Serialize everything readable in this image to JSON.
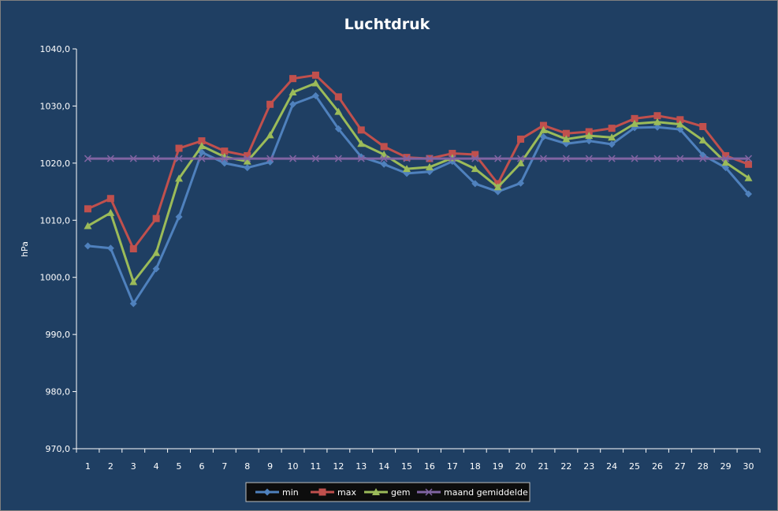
{
  "chart_data": {
    "type": "line",
    "title": "Luchtdruk",
    "ylabel": "hPa",
    "xlabel": "",
    "ylim": [
      970,
      1040
    ],
    "ytick_step": 10,
    "ytick_labels": [
      "970,0",
      "980,0",
      "990,0",
      "1000,0",
      "1010,0",
      "1020,0",
      "1030,0",
      "1040,0"
    ],
    "categories": [
      "1",
      "2",
      "3",
      "4",
      "5",
      "6",
      "7",
      "8",
      "9",
      "10",
      "11",
      "12",
      "13",
      "14",
      "15",
      "16",
      "17",
      "18",
      "19",
      "20",
      "21",
      "22",
      "23",
      "24",
      "25",
      "26",
      "27",
      "28",
      "29",
      "30"
    ],
    "grid": false,
    "legend_position": "bottom",
    "series": [
      {
        "name": "min",
        "color": "#4f81bd",
        "marker": "diamond",
        "values": [
          1005.5,
          1005.1,
          995.4,
          1001.5,
          1010.6,
          1021.9,
          1020.0,
          1019.2,
          1020.2,
          1030.3,
          1031.8,
          1026.0,
          1021.1,
          1019.8,
          1018.2,
          1018.5,
          1020.3,
          1016.4,
          1015.0,
          1016.5,
          1024.6,
          1023.4,
          1023.9,
          1023.3,
          1026.2,
          1026.3,
          1025.9,
          1021.4,
          1019.2,
          1014.6
        ]
      },
      {
        "name": "max",
        "color": "#c0504d",
        "marker": "square",
        "values": [
          1012.0,
          1013.8,
          1005.0,
          1010.3,
          1022.6,
          1023.9,
          1022.1,
          1021.3,
          1030.3,
          1034.8,
          1035.4,
          1031.6,
          1025.8,
          1022.9,
          1021.0,
          1020.8,
          1021.7,
          1021.5,
          1016.4,
          1024.2,
          1026.6,
          1025.2,
          1025.5,
          1026.1,
          1027.8,
          1028.3,
          1027.6,
          1026.4,
          1021.3,
          1019.8
        ]
      },
      {
        "name": "gem",
        "color": "#9bbb59",
        "marker": "triangle",
        "values": [
          1009.0,
          1011.3,
          999.2,
          1004.3,
          1017.3,
          1023.0,
          1021.1,
          1020.3,
          1024.9,
          1032.4,
          1034.0,
          1029.0,
          1023.4,
          1021.5,
          1019.0,
          1019.3,
          1020.9,
          1019.0,
          1015.8,
          1020.0,
          1025.8,
          1024.2,
          1024.8,
          1024.5,
          1026.9,
          1027.2,
          1026.8,
          1024.0,
          1020.1,
          1017.4
        ]
      },
      {
        "name": "maand gemiddelde",
        "color": "#8064a2",
        "marker": "x",
        "values": [
          1020.8,
          1020.8,
          1020.8,
          1020.8,
          1020.8,
          1020.8,
          1020.8,
          1020.8,
          1020.8,
          1020.8,
          1020.8,
          1020.8,
          1020.8,
          1020.8,
          1020.8,
          1020.8,
          1020.8,
          1020.8,
          1020.8,
          1020.8,
          1020.8,
          1020.8,
          1020.8,
          1020.8,
          1020.8,
          1020.8,
          1020.8,
          1020.8,
          1020.8,
          1020.8
        ]
      }
    ]
  }
}
